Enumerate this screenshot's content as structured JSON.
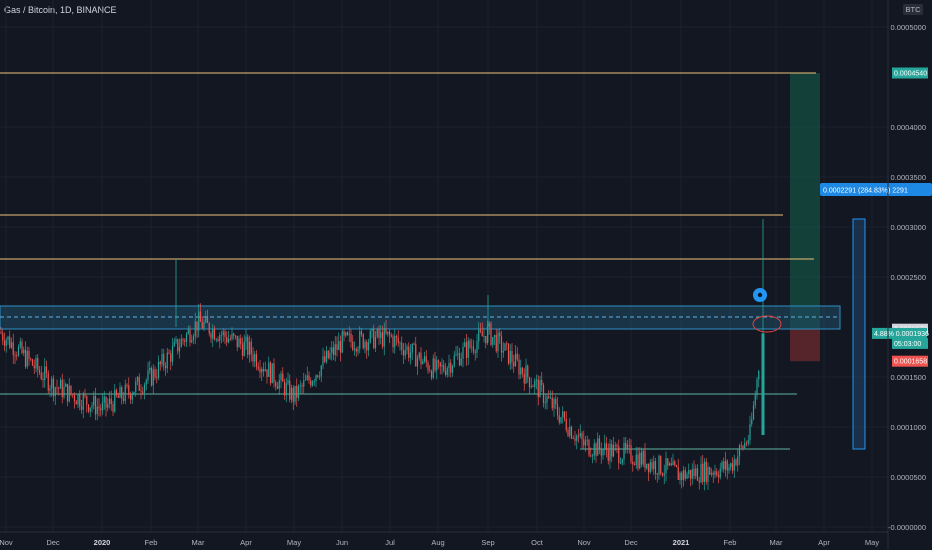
{
  "title": "Gas / Bitcoin, 1D, BINANCE",
  "currency": "BTC",
  "colors": {
    "background": "#131722",
    "up": "#26a69a",
    "down": "#ef5350",
    "resistance": "#f0c27a",
    "support": "#5fb3a0",
    "zone": "#1f4a66",
    "measure": "#2962ff",
    "marker": "#2196f3",
    "target": "#16624f",
    "stop": "#6e2a2f"
  },
  "y_axis": {
    "ticks": [
      "0.0005000",
      "0.0004000",
      "0.0003500",
      "0.0003000",
      "0.0002500",
      "0.0001500",
      "0.0001000",
      "0.0000500",
      "-0.0000000"
    ]
  },
  "price_tags": [
    {
      "text": "0.0004540",
      "value": 0.000454,
      "color": "#26a69a"
    },
    {
      "text": "0.0001978",
      "value": 0.0001978,
      "color": "#d1d4dc"
    },
    {
      "text": "4.88%   0.0001936",
      "value": 0.0001936,
      "color": "#26a69a"
    },
    {
      "text": "05:03:00",
      "value": 0.0001836,
      "color": "#26a69a"
    },
    {
      "text": "0.0001658",
      "value": 0.0001658,
      "color": "#ef5350"
    }
  ],
  "measure_label": "0.0002291 (284.83%) 2291",
  "chart_data": {
    "type": "candlestick",
    "title": "Gas / Bitcoin, 1D, BINANCE",
    "x_ticks": [
      "Nov",
      "Dec",
      "2020",
      "Feb",
      "Mar",
      "Apr",
      "May",
      "Jun",
      "Jul",
      "Aug",
      "Sep",
      "Oct",
      "Nov",
      "Dec",
      "2021",
      "Feb",
      "Mar",
      "Apr",
      "May"
    ],
    "x_ticks_bold": [
      "2020",
      "2021"
    ],
    "ylim": [
      -5e-06,
      0.000527
    ],
    "y_ticks": [
      0.0005,
      0.0004,
      0.00035,
      0.0003,
      0.00025,
      0.00015,
      0.0001,
      5e-05,
      0.0
    ],
    "grid": true,
    "price_series": [
      [
        "Nov",
        0.000195
      ],
      [
        "Dec",
        0.000142
      ],
      [
        "2020",
        0.000118
      ],
      [
        "Feb",
        0.00015
      ],
      [
        "Mar",
        0.000205
      ],
      [
        "Apr",
        0.00018
      ],
      [
        "May",
        0.00013
      ],
      [
        "Jun",
        0.000185
      ],
      [
        "Jul",
        0.00019
      ],
      [
        "Aug",
        0.000155
      ],
      [
        "Sep",
        0.000195
      ],
      [
        "Oct",
        0.00014
      ],
      [
        "Nov",
        8.2e-05
      ],
      [
        "Dec",
        7.2e-05
      ],
      [
        "2021",
        5.2e-05
      ],
      [
        "Feb",
        6e-05
      ],
      [
        "Feb",
        9.2e-05
      ],
      [
        "Feb",
        0.000194
      ]
    ],
    "horizontal_levels": [
      {
        "kind": "resistance",
        "value": 0.000454
      },
      {
        "kind": "resistance",
        "value": 0.000312
      },
      {
        "kind": "resistance",
        "value": 0.000268
      },
      {
        "kind": "support",
        "value": 0.000133
      },
      {
        "kind": "support",
        "value": 7.8e-05
      }
    ],
    "zone": [
      0.000198,
      0.000221
    ],
    "zone_mid": 0.00021,
    "last_price": 0.0001936,
    "spike_high": 0.000308,
    "measure": {
      "from": 7.8e-05,
      "to": 0.000308
    }
  }
}
